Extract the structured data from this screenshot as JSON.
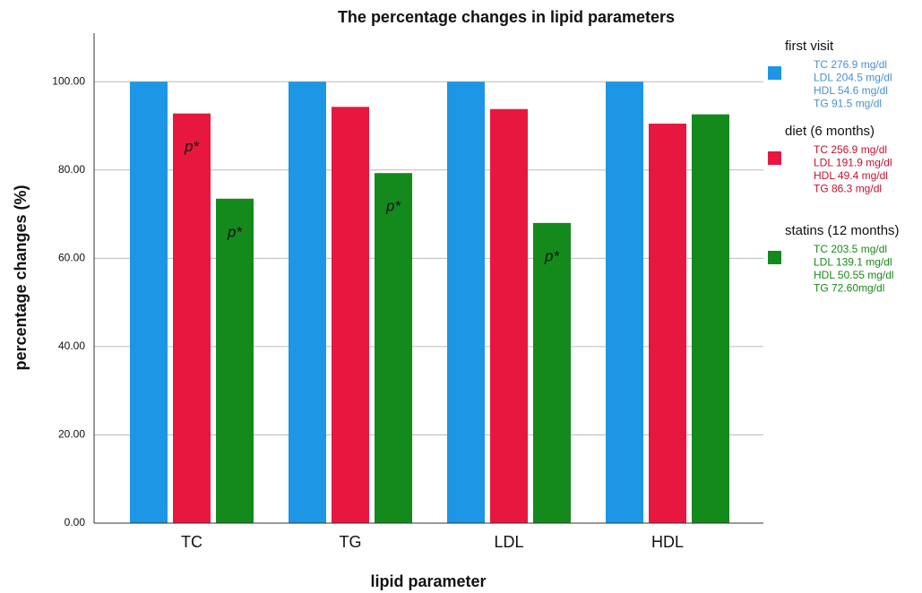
{
  "chart_data": {
    "type": "bar",
    "title": "The percentage changes in lipid parameters",
    "x_label": "lipid parameter",
    "y_label": "percentage changes (%)",
    "categories": [
      "TC",
      "TG",
      "LDL",
      "HDL"
    ],
    "series": [
      {
        "name": "first visit",
        "color": "#1e96e6",
        "text_color": "#4a8fd4",
        "details": [
          "TC 276.9 mg/dl",
          "LDL 204.5 mg/dl",
          "HDL 54.6 mg/dl",
          "TG 91.5 mg/dl"
        ],
        "values": [
          100,
          100,
          100,
          100
        ]
      },
      {
        "name": "diet (6 months)",
        "color": "#e8173f",
        "text_color": "#c8102e",
        "details": [
          "TC 256.9 mg/dl",
          "LDL 191.9 mg/dl",
          "HDL 49.4 mg/dl",
          "TG 86.3 mg/dl"
        ],
        "values": [
          92.8,
          94.3,
          93.8,
          90.5
        ]
      },
      {
        "name": "statins (12 months)",
        "color": "#148a1c",
        "text_color": "#1a8a1a",
        "details": [
          "TC 203.5 mg/dl",
          "LDL 139.1 mg/dl",
          "HDL 50.55 mg/dl",
          "TG 72.60mg/dl"
        ],
        "values": [
          73.5,
          79.3,
          68.0,
          92.6
        ]
      }
    ],
    "annotations": [
      {
        "text": "p*",
        "category": "TC",
        "series": "diet (6 months)"
      },
      {
        "text": "p*",
        "category": "TC",
        "series": "statins (12 months)"
      },
      {
        "text": "p*",
        "category": "TG",
        "series": "statins (12 months)"
      },
      {
        "text": "p*",
        "category": "LDL",
        "series": "statins (12 months)"
      }
    ],
    "ylim": [
      0,
      111
    ],
    "yticks": [
      {
        "value": 0,
        "label": "0.00"
      },
      {
        "value": 20,
        "label": "20.00"
      },
      {
        "value": 40,
        "label": "40.00"
      },
      {
        "value": 60,
        "label": "60.00"
      },
      {
        "value": 80,
        "label": "80.00"
      },
      {
        "value": 100,
        "label": "100.00"
      }
    ],
    "grid": true
  }
}
